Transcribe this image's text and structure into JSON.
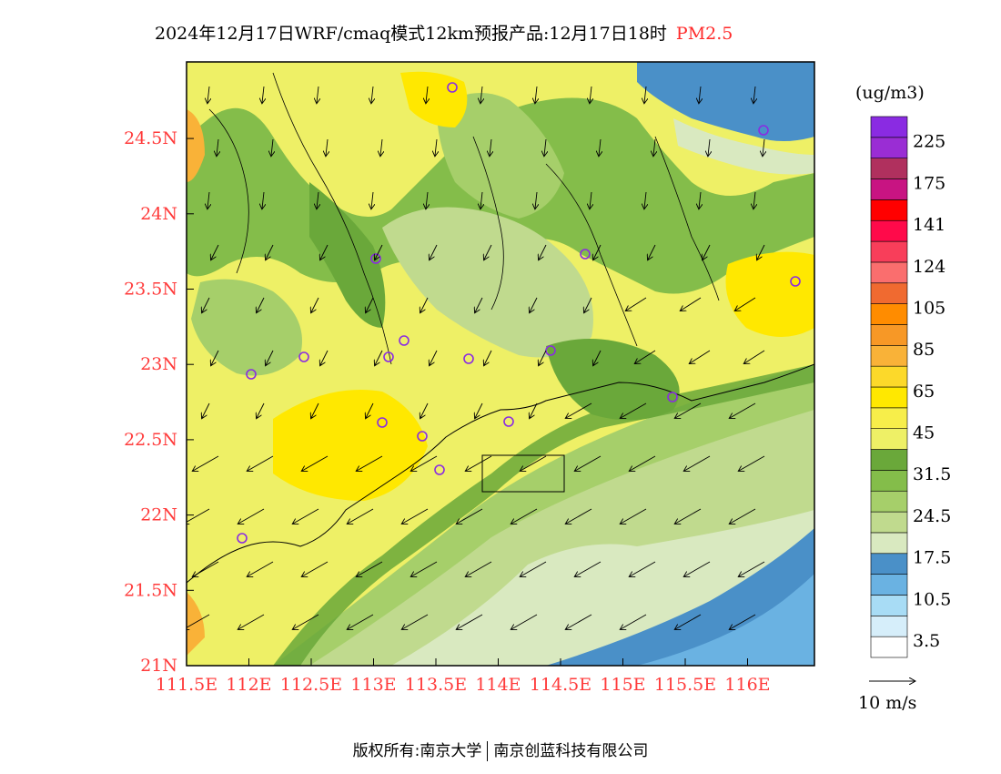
{
  "title": {
    "text": "2024年12月17日WRF/cmaq模式12km预报产品:12月17日18时",
    "pollutant": "PM2.5"
  },
  "colorbar": {
    "unit": "(ug/m3)",
    "levels": [
      {
        "color": "#ffffff",
        "label": "3.5"
      },
      {
        "color": "#d6eefa",
        "label": ""
      },
      {
        "color": "#a8dcf5",
        "label": "10.5"
      },
      {
        "color": "#6ab2e2",
        "label": ""
      },
      {
        "color": "#4a90c8",
        "label": "17.5"
      },
      {
        "color": "#d9e9c0",
        "label": ""
      },
      {
        "color": "#c0da8e",
        "label": "24.5"
      },
      {
        "color": "#a6cf6a",
        "label": ""
      },
      {
        "color": "#84bd4a",
        "label": "31.5"
      },
      {
        "color": "#6aa83a",
        "label": ""
      },
      {
        "color": "#eef066",
        "label": "45"
      },
      {
        "color": "#f7ee4a",
        "label": ""
      },
      {
        "color": "#ffe800",
        "label": "65"
      },
      {
        "color": "#fcd92a",
        "label": ""
      },
      {
        "color": "#f9b238",
        "label": "85"
      },
      {
        "color": "#f79826",
        "label": ""
      },
      {
        "color": "#ff8c00",
        "label": "105"
      },
      {
        "color": "#f06a30",
        "label": ""
      },
      {
        "color": "#fa6e6e",
        "label": "124"
      },
      {
        "color": "#f83e5a",
        "label": ""
      },
      {
        "color": "#ff0a4a",
        "label": "141"
      },
      {
        "color": "#ff0000",
        "label": ""
      },
      {
        "color": "#c81482",
        "label": "175"
      },
      {
        "color": "#b0305e",
        "label": ""
      },
      {
        "color": "#9a2dd4",
        "label": "225"
      },
      {
        "color": "#8a2be2",
        "label": ""
      }
    ]
  },
  "axes": {
    "x_ticks": [
      "111.5E",
      "112E",
      "112.5E",
      "113E",
      "113.5E",
      "114E",
      "114.5E",
      "115E",
      "115.5E",
      "116E"
    ],
    "y_ticks": [
      "21N",
      "21.5N",
      "22N",
      "22.5N",
      "23N",
      "23.5N",
      "24N",
      "24.5N"
    ]
  },
  "wind_legend": {
    "label": "10 m/s"
  },
  "copyright": {
    "prefix": "版权所有:",
    "org1": "南京大学",
    "org2": "南京创蓝科技有限公司"
  },
  "palette": {
    "bg_yellow": "#eef066",
    "deep_yellow": "#f7ee4a",
    "gold": "#ffe800",
    "light_green": "#c0da8e",
    "mid_green": "#a6cf6a",
    "dark_green": "#6aa83a",
    "pale_green": "#d9e9c0",
    "blue": "#4a90c8",
    "light_blue": "#6ab2e2",
    "station_purple": "#8a2be2"
  }
}
